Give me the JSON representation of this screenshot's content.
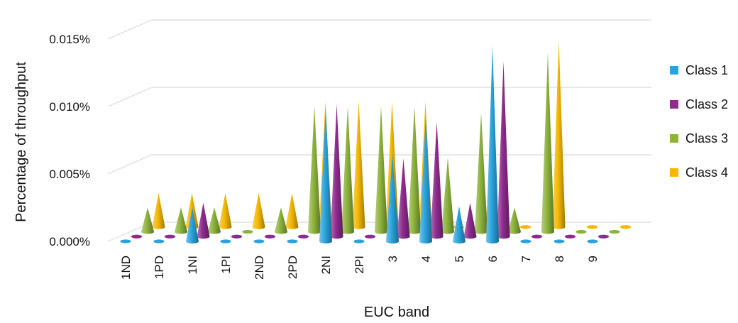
{
  "chart_data": {
    "type": "3d-cone",
    "xlabel": "EUC band",
    "ylabel": "Percentage of throughput",
    "categories": [
      "1ND",
      "1PD",
      "1NI",
      "1PI",
      "2ND",
      "2PD",
      "2NI",
      "2PI",
      "3",
      "4",
      "5",
      "6",
      "7",
      "8",
      "9"
    ],
    "y_ticks": [
      "0.000%",
      "0.005%",
      "0.010%",
      "0.015%"
    ],
    "ylim": [
      0,
      0.015
    ],
    "legend_position": "right",
    "series": [
      {
        "name": "Class 1",
        "color": "#29A3DD",
        "values": [
          0,
          0,
          0.0025,
          0,
          0,
          0,
          0.0099,
          0,
          0.0065,
          0.0093,
          0.0026,
          0.0145,
          0,
          0,
          0
        ]
      },
      {
        "name": "Class 2",
        "color": "#8E2B8E",
        "values": [
          0,
          0,
          0.0025,
          0,
          0,
          0,
          0.0098,
          0,
          0.0058,
          0.0085,
          0.0025,
          0.013,
          0,
          0,
          0
        ]
      },
      {
        "name": "Class 3",
        "color": "#8DB33B",
        "values": [
          0.0018,
          0.0018,
          0.0018,
          0,
          0.0018,
          0.0093,
          0.0093,
          0.0093,
          0.0093,
          0.0055,
          0.0088,
          0.0018,
          0.0133,
          0,
          0
        ]
      },
      {
        "name": "Class 4",
        "color": "#F5B800",
        "values": [
          0.0025,
          0.0025,
          0.0025,
          0.0025,
          0.0025,
          0.0093,
          0.0093,
          0.0093,
          0.0093,
          0,
          0.0088,
          0,
          0.0138,
          0,
          0
        ]
      }
    ]
  }
}
